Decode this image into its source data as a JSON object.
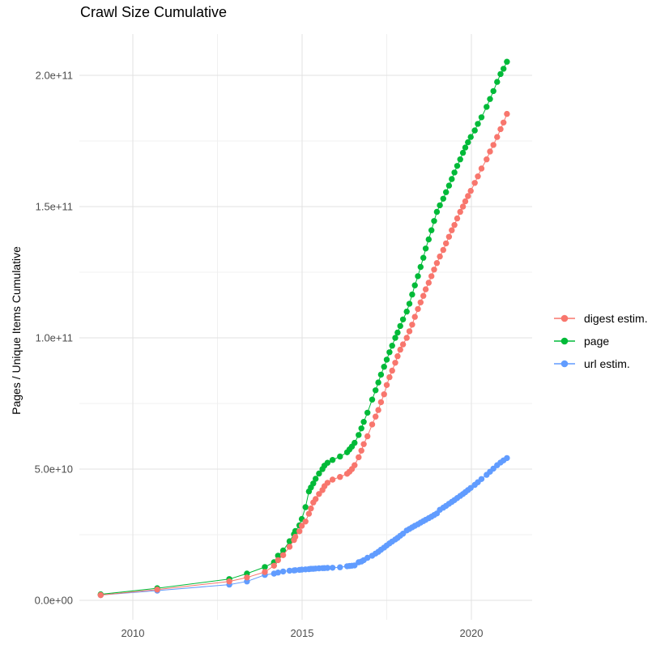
{
  "title": "Crawl Size Cumulative",
  "y_axis_title": "Pages / Unique Items Cumulative",
  "colors": {
    "digest": "#F8766D",
    "page": "#00BA38",
    "url": "#619CFF",
    "grid_major": "#E2E2E2",
    "grid_minor": "#F0F0F0",
    "tick_text": "#4d4d4d"
  },
  "legend": {
    "items": [
      {
        "label": "digest estim.",
        "color": "#F8766D"
      },
      {
        "label": "page",
        "color": "#00BA38"
      },
      {
        "label": "url estim.",
        "color": "#619CFF"
      }
    ]
  },
  "chart_data": {
    "type": "scatter",
    "title": "Crawl Size Cumulative",
    "xlabel": "",
    "ylabel": "Pages / Unique Items Cumulative",
    "x_unit": "year (decimal)",
    "y_unit": "billions of items (1e9)",
    "grid": true,
    "legend_position": "right",
    "xlim": [
      2008.421,
      2021.794
    ],
    "ylim": [
      -7.4,
      215.74
    ],
    "x_ticks": [
      {
        "value": 2010,
        "label": "2010"
      },
      {
        "value": 2015,
        "label": "2015"
      },
      {
        "value": 2020,
        "label": "2020"
      }
    ],
    "x_minor": [
      2012.5,
      2017.5
    ],
    "y_ticks": [
      {
        "value": 0,
        "label": "0.0e+00"
      },
      {
        "value": 50,
        "label": "5.0e+10"
      },
      {
        "value": 100,
        "label": "1.0e+11"
      },
      {
        "value": 150,
        "label": "1.5e+11"
      },
      {
        "value": 200,
        "label": "2.0e+11"
      }
    ],
    "y_minor": [
      25,
      75,
      125,
      175
    ],
    "series": [
      {
        "name": "digest estim.",
        "color": "#F8766D",
        "points": [
          [
            2009.05,
            2
          ],
          [
            2010.72,
            4.1
          ],
          [
            2012.85,
            7.2
          ],
          [
            2013.37,
            8.7
          ],
          [
            2013.9,
            10.8
          ],
          [
            2014.17,
            13.2
          ],
          [
            2014.29,
            15.3
          ],
          [
            2014.44,
            17.2
          ],
          [
            2014.63,
            20.4
          ],
          [
            2014.76,
            23
          ],
          [
            2014.8,
            24.2
          ],
          [
            2014.92,
            26.3
          ],
          [
            2014.99,
            28.4
          ],
          [
            2015.1,
            30
          ],
          [
            2015.2,
            33
          ],
          [
            2015.26,
            35
          ],
          [
            2015.33,
            37.3
          ],
          [
            2015.4,
            38.6
          ],
          [
            2015.5,
            40.5
          ],
          [
            2015.6,
            42
          ],
          [
            2015.66,
            43.5
          ],
          [
            2015.75,
            44.8
          ],
          [
            2015.9,
            46
          ],
          [
            2016.12,
            47
          ],
          [
            2016.33,
            48.2
          ],
          [
            2016.4,
            49
          ],
          [
            2016.47,
            50
          ],
          [
            2016.55,
            51.5
          ],
          [
            2016.67,
            54.5
          ],
          [
            2016.75,
            57
          ],
          [
            2016.82,
            59.5
          ],
          [
            2016.93,
            62.5
          ],
          [
            2017.07,
            67
          ],
          [
            2017.17,
            70
          ],
          [
            2017.25,
            72.5
          ],
          [
            2017.33,
            75.5
          ],
          [
            2017.42,
            78.5
          ],
          [
            2017.5,
            82
          ],
          [
            2017.58,
            85
          ],
          [
            2017.66,
            87.5
          ],
          [
            2017.75,
            90.5
          ],
          [
            2017.82,
            93
          ],
          [
            2017.9,
            95.5
          ],
          [
            2017.98,
            97.5
          ],
          [
            2018.09,
            100
          ],
          [
            2018.17,
            102.5
          ],
          [
            2018.25,
            105
          ],
          [
            2018.33,
            108
          ],
          [
            2018.42,
            111
          ],
          [
            2018.5,
            113.5
          ],
          [
            2018.58,
            116
          ],
          [
            2018.65,
            118.5
          ],
          [
            2018.74,
            121
          ],
          [
            2018.82,
            123.5
          ],
          [
            2018.9,
            126
          ],
          [
            2018.98,
            128.5
          ],
          [
            2019.07,
            131
          ],
          [
            2019.17,
            133.5
          ],
          [
            2019.25,
            136
          ],
          [
            2019.34,
            138.5
          ],
          [
            2019.42,
            141
          ],
          [
            2019.5,
            143
          ],
          [
            2019.58,
            145.5
          ],
          [
            2019.67,
            148
          ],
          [
            2019.75,
            150
          ],
          [
            2019.82,
            152
          ],
          [
            2019.9,
            154
          ],
          [
            2019.98,
            156
          ],
          [
            2020.1,
            159
          ],
          [
            2020.19,
            161.5
          ],
          [
            2020.3,
            164.5
          ],
          [
            2020.45,
            168
          ],
          [
            2020.55,
            171
          ],
          [
            2020.65,
            173.5
          ],
          [
            2020.76,
            176.5
          ],
          [
            2020.86,
            179.5
          ],
          [
            2020.95,
            182
          ],
          [
            2021.05,
            185.3
          ]
        ]
      },
      {
        "name": "page",
        "color": "#00BA38",
        "points": [
          [
            2009.05,
            2.3
          ],
          [
            2010.72,
            4.6
          ],
          [
            2012.85,
            8.1
          ],
          [
            2013.37,
            10.2
          ],
          [
            2013.9,
            12.7
          ],
          [
            2014.17,
            14.5
          ],
          [
            2014.29,
            17
          ],
          [
            2014.44,
            19
          ],
          [
            2014.63,
            22.5
          ],
          [
            2014.76,
            25.2
          ],
          [
            2014.8,
            26.4
          ],
          [
            2014.92,
            28.6
          ],
          [
            2014.99,
            31
          ],
          [
            2015.1,
            35.5
          ],
          [
            2015.2,
            41.5
          ],
          [
            2015.26,
            43
          ],
          [
            2015.33,
            44.5
          ],
          [
            2015.4,
            46.3
          ],
          [
            2015.5,
            48.3
          ],
          [
            2015.6,
            50
          ],
          [
            2015.66,
            51.3
          ],
          [
            2015.75,
            52.4
          ],
          [
            2015.9,
            53.5
          ],
          [
            2016.12,
            54.8
          ],
          [
            2016.33,
            56.4
          ],
          [
            2016.4,
            57.5
          ],
          [
            2016.47,
            58.6
          ],
          [
            2016.55,
            60
          ],
          [
            2016.67,
            63
          ],
          [
            2016.75,
            65.5
          ],
          [
            2016.82,
            68
          ],
          [
            2016.93,
            71.5
          ],
          [
            2017.07,
            76.5
          ],
          [
            2017.17,
            80
          ],
          [
            2017.25,
            83
          ],
          [
            2017.33,
            86
          ],
          [
            2017.42,
            89
          ],
          [
            2017.5,
            91.7
          ],
          [
            2017.58,
            94.5
          ],
          [
            2017.66,
            97
          ],
          [
            2017.75,
            100
          ],
          [
            2017.82,
            102
          ],
          [
            2017.9,
            104.5
          ],
          [
            2017.98,
            107
          ],
          [
            2018.09,
            110
          ],
          [
            2018.17,
            113
          ],
          [
            2018.25,
            116.5
          ],
          [
            2018.33,
            120
          ],
          [
            2018.42,
            123.5
          ],
          [
            2018.5,
            127
          ],
          [
            2018.58,
            130.5
          ],
          [
            2018.65,
            134
          ],
          [
            2018.74,
            137.5
          ],
          [
            2018.82,
            141
          ],
          [
            2018.9,
            144.5
          ],
          [
            2018.98,
            148
          ],
          [
            2019.07,
            150.5
          ],
          [
            2019.17,
            153
          ],
          [
            2019.25,
            155.5
          ],
          [
            2019.34,
            158
          ],
          [
            2019.42,
            160.5
          ],
          [
            2019.5,
            163
          ],
          [
            2019.58,
            165.5
          ],
          [
            2019.67,
            168
          ],
          [
            2019.75,
            170.5
          ],
          [
            2019.82,
            172.5
          ],
          [
            2019.9,
            174.5
          ],
          [
            2019.98,
            176.5
          ],
          [
            2020.1,
            179
          ],
          [
            2020.19,
            181.5
          ],
          [
            2020.3,
            184
          ],
          [
            2020.45,
            188
          ],
          [
            2020.55,
            191
          ],
          [
            2020.65,
            194
          ],
          [
            2020.76,
            197.5
          ],
          [
            2020.86,
            200.5
          ],
          [
            2020.95,
            202.5
          ],
          [
            2021.05,
            205.2
          ]
        ]
      },
      {
        "name": "url estim.",
        "color": "#619CFF",
        "points": [
          [
            2009.05,
            2
          ],
          [
            2010.72,
            3.7
          ],
          [
            2012.85,
            6
          ],
          [
            2013.37,
            7.2
          ],
          [
            2013.9,
            9.7
          ],
          [
            2014.17,
            10.2
          ],
          [
            2014.29,
            10.6
          ],
          [
            2014.44,
            11
          ],
          [
            2014.63,
            11.3
          ],
          [
            2014.76,
            11.4
          ],
          [
            2014.8,
            11.5
          ],
          [
            2014.92,
            11.6
          ],
          [
            2014.99,
            11.7
          ],
          [
            2015.1,
            11.8
          ],
          [
            2015.2,
            11.9
          ],
          [
            2015.26,
            12
          ],
          [
            2015.33,
            12
          ],
          [
            2015.4,
            12.1
          ],
          [
            2015.5,
            12.2
          ],
          [
            2015.6,
            12.25
          ],
          [
            2015.66,
            12.3
          ],
          [
            2015.75,
            12.35
          ],
          [
            2015.9,
            12.4
          ],
          [
            2016.12,
            12.6
          ],
          [
            2016.33,
            13
          ],
          [
            2016.4,
            13.1
          ],
          [
            2016.47,
            13.2
          ],
          [
            2016.55,
            13.3
          ],
          [
            2016.67,
            14.5
          ],
          [
            2016.75,
            14.8
          ],
          [
            2016.82,
            15.3
          ],
          [
            2016.93,
            16.2
          ],
          [
            2017.07,
            17
          ],
          [
            2017.17,
            17.8
          ],
          [
            2017.25,
            18.5
          ],
          [
            2017.33,
            19.3
          ],
          [
            2017.42,
            20.1
          ],
          [
            2017.5,
            20.9
          ],
          [
            2017.58,
            21.7
          ],
          [
            2017.66,
            22.4
          ],
          [
            2017.75,
            23.2
          ],
          [
            2017.82,
            23.8
          ],
          [
            2017.9,
            24.6
          ],
          [
            2017.98,
            25.4
          ],
          [
            2018.09,
            26.6
          ],
          [
            2018.17,
            27.2
          ],
          [
            2018.25,
            27.8
          ],
          [
            2018.33,
            28.4
          ],
          [
            2018.42,
            29
          ],
          [
            2018.5,
            29.6
          ],
          [
            2018.58,
            30.2
          ],
          [
            2018.65,
            30.7
          ],
          [
            2018.74,
            31.3
          ],
          [
            2018.82,
            31.9
          ],
          [
            2018.9,
            32.5
          ],
          [
            2018.98,
            33.1
          ],
          [
            2019.07,
            34.5
          ],
          [
            2019.17,
            35.3
          ],
          [
            2019.25,
            36
          ],
          [
            2019.34,
            36.8
          ],
          [
            2019.42,
            37.5
          ],
          [
            2019.5,
            38.2
          ],
          [
            2019.58,
            39
          ],
          [
            2019.67,
            39.8
          ],
          [
            2019.75,
            40.5
          ],
          [
            2019.82,
            41.2
          ],
          [
            2019.9,
            42
          ],
          [
            2019.98,
            42.8
          ],
          [
            2020.1,
            44
          ],
          [
            2020.19,
            45
          ],
          [
            2020.3,
            46.2
          ],
          [
            2020.45,
            47.8
          ],
          [
            2020.55,
            49
          ],
          [
            2020.65,
            50.2
          ],
          [
            2020.76,
            51.5
          ],
          [
            2020.86,
            52.5
          ],
          [
            2020.95,
            53.3
          ],
          [
            2021.05,
            54.2
          ]
        ]
      }
    ]
  }
}
